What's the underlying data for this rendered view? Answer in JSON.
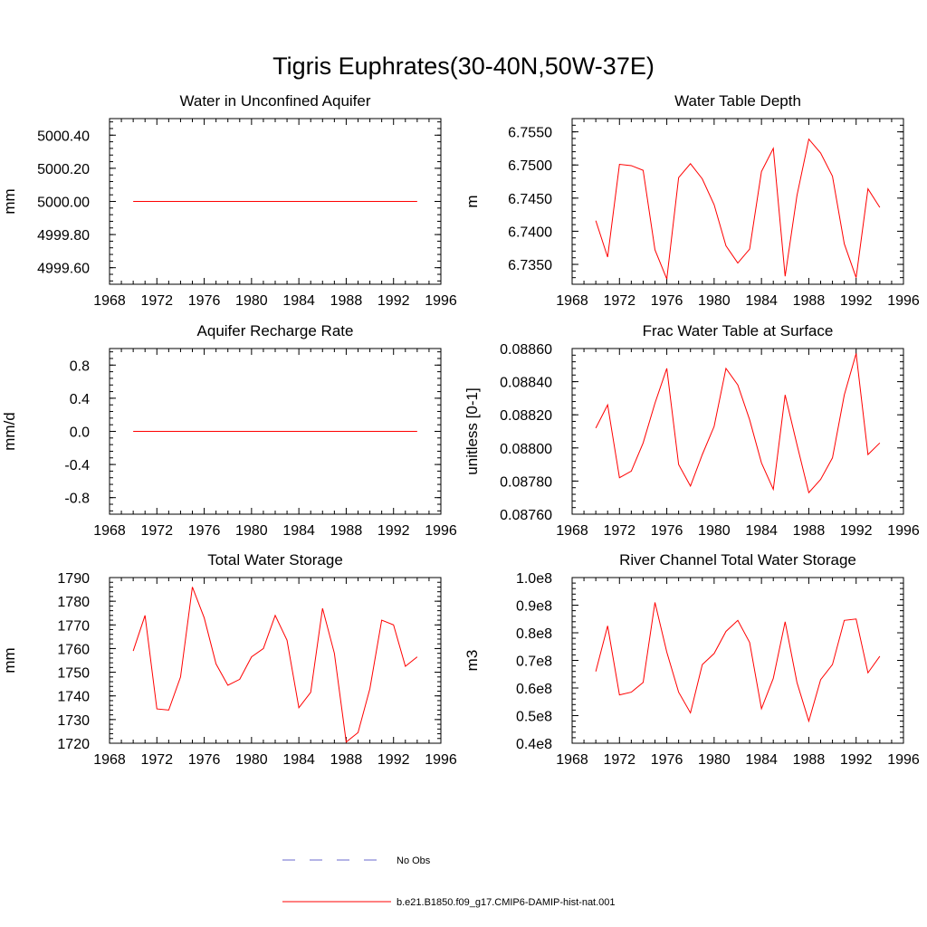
{
  "figure": {
    "title": "Tigris Euphrates(30-40N,50W-37E)"
  },
  "colors": {
    "model_line": "#ff0000",
    "obs_line": "#6a6acd",
    "axis": "#000000",
    "background": "#ffffff"
  },
  "legend": {
    "placement": "bottom-center",
    "entries": [
      {
        "label": "No Obs",
        "style": "dashed",
        "color": "#6a6acd"
      },
      {
        "label": "b.e21.B1850.f09_g17.CMIP6-DAMIP-hist-nat.001",
        "style": "solid",
        "color": "#ff0000"
      }
    ]
  },
  "chart_data": [
    {
      "type": "line",
      "title": "Water in Unconfined Aquifer",
      "ylabel": "mm",
      "xlabel": "",
      "xlim": [
        1968,
        1996
      ],
      "ylim": [
        4999.5,
        5000.5
      ],
      "xticks": [
        1968,
        1972,
        1976,
        1980,
        1984,
        1988,
        1992,
        1996
      ],
      "xtick_labels": [
        "1968",
        "1972",
        "1976",
        "1980",
        "1984",
        "1988",
        "1992",
        "1996"
      ],
      "yticks": [
        4999.6,
        4999.8,
        5000.0,
        5000.2,
        5000.4
      ],
      "ytick_labels": [
        "4999.60",
        "4999.80",
        "5000.00",
        "5000.20",
        "5000.40"
      ],
      "grid": false,
      "x": [
        1970,
        1971,
        1972,
        1973,
        1974,
        1975,
        1976,
        1977,
        1978,
        1979,
        1980,
        1981,
        1982,
        1983,
        1984,
        1985,
        1986,
        1987,
        1988,
        1989,
        1990,
        1991,
        1992,
        1993,
        1994
      ],
      "series": [
        {
          "values": [
            5000,
            5000,
            5000,
            5000,
            5000,
            5000,
            5000,
            5000,
            5000,
            5000,
            5000,
            5000,
            5000,
            5000,
            5000,
            5000,
            5000,
            5000,
            5000,
            5000,
            5000,
            5000,
            5000,
            5000,
            5000
          ]
        }
      ]
    },
    {
      "type": "line",
      "title": "Water Table Depth",
      "ylabel": "m",
      "xlabel": "",
      "xlim": [
        1968,
        1996
      ],
      "ylim": [
        6.732,
        6.757
      ],
      "xticks": [
        1968,
        1972,
        1976,
        1980,
        1984,
        1988,
        1992,
        1996
      ],
      "xtick_labels": [
        "1968",
        "1972",
        "1976",
        "1980",
        "1984",
        "1988",
        "1992",
        "1996"
      ],
      "yticks": [
        6.735,
        6.74,
        6.745,
        6.75,
        6.755
      ],
      "ytick_labels": [
        "6.7350",
        "6.7400",
        "6.7450",
        "6.7500",
        "6.7550"
      ],
      "grid": false,
      "x": [
        1970,
        1971,
        1972,
        1973,
        1974,
        1975,
        1976,
        1977,
        1978,
        1979,
        1980,
        1981,
        1982,
        1983,
        1984,
        1985,
        1986,
        1987,
        1988,
        1989,
        1990,
        1991,
        1992,
        1993,
        1994
      ],
      "series": [
        {
          "values": [
            6.7416,
            6.7361,
            6.7501,
            6.7499,
            6.7492,
            6.7372,
            6.7328,
            6.7481,
            6.7502,
            6.7479,
            6.744,
            6.7378,
            6.7352,
            6.7373,
            6.749,
            6.7525,
            6.7332,
            6.7454,
            6.7539,
            6.7518,
            6.7483,
            6.7381,
            6.733,
            6.7464,
            6.7436
          ]
        }
      ]
    },
    {
      "type": "line",
      "title": "Aquifer Recharge Rate",
      "ylabel": "mm/d",
      "xlabel": "",
      "xlim": [
        1968,
        1996
      ],
      "ylim": [
        -1.0,
        1.0
      ],
      "xticks": [
        1968,
        1972,
        1976,
        1980,
        1984,
        1988,
        1992,
        1996
      ],
      "xtick_labels": [
        "1968",
        "1972",
        "1976",
        "1980",
        "1984",
        "1988",
        "1992",
        "1996"
      ],
      "yticks": [
        -0.8,
        -0.4,
        0.0,
        0.4,
        0.8
      ],
      "ytick_labels": [
        "-0.8",
        "-0.4",
        "0.0",
        "0.4",
        "0.8"
      ],
      "grid": false,
      "x": [
        1970,
        1971,
        1972,
        1973,
        1974,
        1975,
        1976,
        1977,
        1978,
        1979,
        1980,
        1981,
        1982,
        1983,
        1984,
        1985,
        1986,
        1987,
        1988,
        1989,
        1990,
        1991,
        1992,
        1993,
        1994
      ],
      "series": [
        {
          "values": [
            0,
            0,
            0,
            0,
            0,
            0,
            0,
            0,
            0,
            0,
            0,
            0,
            0,
            0,
            0,
            0,
            0,
            0,
            0,
            0,
            0,
            0,
            0,
            0,
            0
          ]
        }
      ]
    },
    {
      "type": "line",
      "title": "Frac Water Table at Surface",
      "ylabel": "unitless [0-1]",
      "xlabel": "",
      "xlim": [
        1968,
        1996
      ],
      "ylim": [
        0.0876,
        0.0886
      ],
      "xticks": [
        1968,
        1972,
        1976,
        1980,
        1984,
        1988,
        1992,
        1996
      ],
      "xtick_labels": [
        "1968",
        "1972",
        "1976",
        "1980",
        "1984",
        "1988",
        "1992",
        "1996"
      ],
      "yticks": [
        0.0876,
        0.0878,
        0.088,
        0.0882,
        0.0884,
        0.0886
      ],
      "ytick_labels": [
        "0.08760",
        "0.08780",
        "0.08800",
        "0.08820",
        "0.08840",
        "0.08860"
      ],
      "grid": false,
      "x": [
        1970,
        1971,
        1972,
        1973,
        1974,
        1975,
        1976,
        1977,
        1978,
        1979,
        1980,
        1981,
        1982,
        1983,
        1984,
        1985,
        1986,
        1987,
        1988,
        1989,
        1990,
        1991,
        1992,
        1993,
        1994
      ],
      "series": [
        {
          "values": [
            0.08812,
            0.08826,
            0.08782,
            0.08786,
            0.08803,
            0.08827,
            0.08848,
            0.0879,
            0.08777,
            0.08796,
            0.08813,
            0.08848,
            0.08838,
            0.08817,
            0.08791,
            0.08775,
            0.08832,
            0.08802,
            0.08773,
            0.08781,
            0.08794,
            0.08832,
            0.08857,
            0.08796,
            0.08803
          ]
        }
      ]
    },
    {
      "type": "line",
      "title": "Total Water Storage",
      "ylabel": "mm",
      "xlabel": "",
      "xlim": [
        1968,
        1996
      ],
      "ylim": [
        1720,
        1790
      ],
      "xticks": [
        1968,
        1972,
        1976,
        1980,
        1984,
        1988,
        1992,
        1996
      ],
      "xtick_labels": [
        "1968",
        "1972",
        "1976",
        "1980",
        "1984",
        "1988",
        "1992",
        "1996"
      ],
      "yticks": [
        1720,
        1730,
        1740,
        1750,
        1760,
        1770,
        1780,
        1790
      ],
      "ytick_labels": [
        "1720",
        "1730",
        "1740",
        "1750",
        "1760",
        "1770",
        "1780",
        "1790"
      ],
      "grid": false,
      "x": [
        1970,
        1971,
        1972,
        1973,
        1974,
        1975,
        1976,
        1977,
        1978,
        1979,
        1980,
        1981,
        1982,
        1983,
        1984,
        1985,
        1986,
        1987,
        1988,
        1989,
        1990,
        1991,
        1992,
        1993,
        1994
      ],
      "series": [
        {
          "values": [
            1759,
            1774,
            1734.5,
            1734,
            1748,
            1786,
            1773,
            1753.5,
            1744.5,
            1747,
            1756.5,
            1760,
            1774,
            1763.5,
            1735,
            1741.5,
            1777,
            1758,
            1720.5,
            1724.5,
            1743,
            1772,
            1770,
            1752.5,
            1756.5
          ]
        }
      ]
    },
    {
      "type": "line",
      "title": "River Channel Total Water Storage",
      "ylabel": "m3",
      "xlabel": "",
      "xlim": [
        1968,
        1996
      ],
      "ylim": [
        40000000,
        100000000
      ],
      "xticks": [
        1968,
        1972,
        1976,
        1980,
        1984,
        1988,
        1992,
        1996
      ],
      "xtick_labels": [
        "1968",
        "1972",
        "1976",
        "1980",
        "1984",
        "1988",
        "1992",
        "1996"
      ],
      "yticks": [
        40000000,
        50000000,
        60000000,
        70000000,
        80000000,
        90000000,
        100000000
      ],
      "ytick_labels": [
        "0.4e8",
        "0.5e8",
        "0.6e8",
        "0.7e8",
        "0.8e8",
        "0.9e8",
        "1.0e8"
      ],
      "grid": false,
      "x": [
        1970,
        1971,
        1972,
        1973,
        1974,
        1975,
        1976,
        1977,
        1978,
        1979,
        1980,
        1981,
        1982,
        1983,
        1984,
        1985,
        1986,
        1987,
        1988,
        1989,
        1990,
        1991,
        1992,
        1993,
        1994
      ],
      "series": [
        {
          "values": [
            66000000,
            82500000,
            57500000,
            58500000,
            62000000,
            91000000,
            73000000,
            58500000,
            51000000,
            68500000,
            72500000,
            80500000,
            84500000,
            76500000,
            52500000,
            63500000,
            84000000,
            62000000,
            48000000,
            63000000,
            68500000,
            84500000,
            85000000,
            65500000,
            71500000
          ]
        }
      ]
    }
  ]
}
